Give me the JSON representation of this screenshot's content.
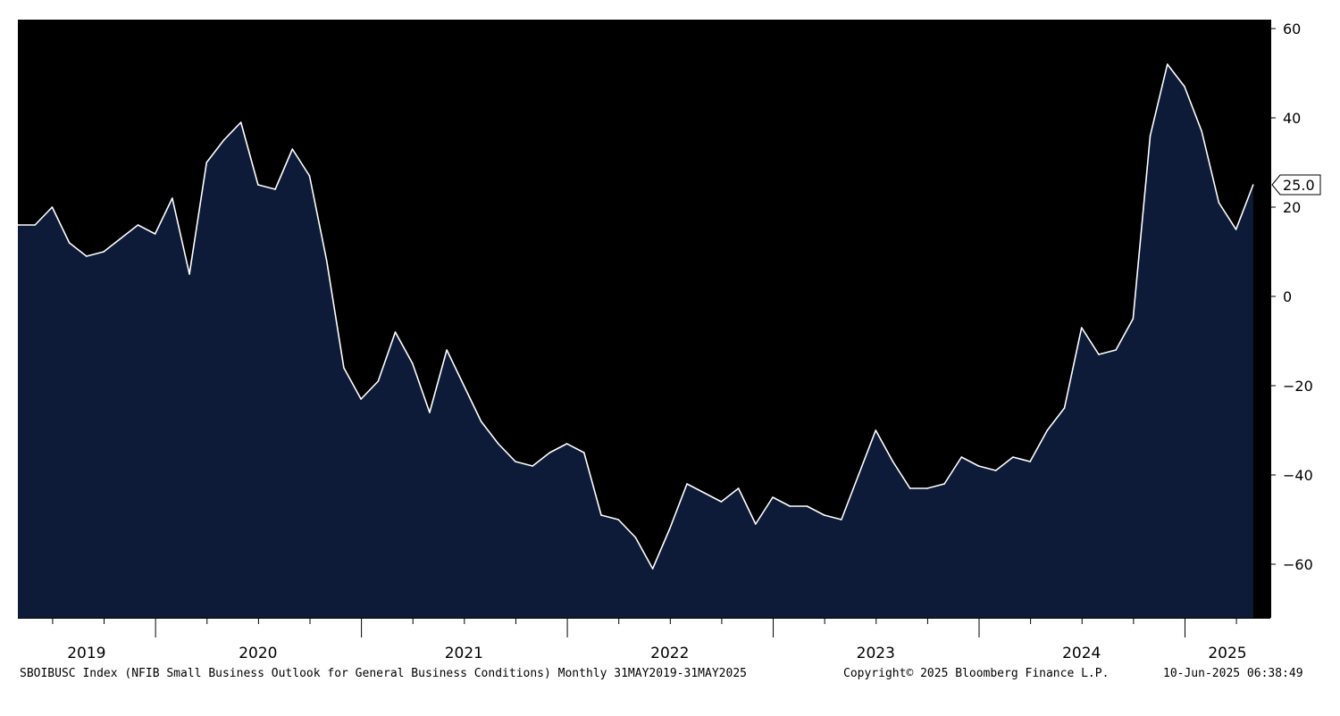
{
  "chart_data": {
    "type": "area",
    "series": [
      {
        "name": "SBOIBUSC Index",
        "x": [
          "2019-05",
          "2019-06",
          "2019-07",
          "2019-08",
          "2019-09",
          "2019-10",
          "2019-11",
          "2019-12",
          "2020-01",
          "2020-02",
          "2020-03",
          "2020-04",
          "2020-05",
          "2020-06",
          "2020-07",
          "2020-08",
          "2020-09",
          "2020-10",
          "2020-11",
          "2020-12",
          "2021-01",
          "2021-02",
          "2021-03",
          "2021-04",
          "2021-05",
          "2021-06",
          "2021-07",
          "2021-08",
          "2021-09",
          "2021-10",
          "2021-11",
          "2021-12",
          "2022-01",
          "2022-02",
          "2022-03",
          "2022-04",
          "2022-05",
          "2022-06",
          "2022-07",
          "2022-08",
          "2022-09",
          "2022-10",
          "2022-11",
          "2022-12",
          "2023-01",
          "2023-02",
          "2023-03",
          "2023-04",
          "2023-05",
          "2023-06",
          "2023-07",
          "2023-08",
          "2023-09",
          "2023-10",
          "2023-11",
          "2023-12",
          "2024-01",
          "2024-02",
          "2024-03",
          "2024-04",
          "2024-05",
          "2024-06",
          "2024-07",
          "2024-08",
          "2024-09",
          "2024-10",
          "2024-11",
          "2024-12",
          "2025-01",
          "2025-02",
          "2025-03",
          "2025-04",
          "2025-05"
        ],
        "values": [
          16,
          16,
          20,
          12,
          9,
          10,
          13,
          16,
          14,
          22,
          5,
          30,
          35,
          39,
          25,
          24,
          33,
          27,
          8,
          -16,
          -23,
          -19,
          -8,
          -15,
          -26,
          -12,
          -20,
          -28,
          -33,
          -37,
          -38,
          -35,
          -33,
          -35,
          -49,
          -50,
          -54,
          -61,
          -52,
          -42,
          -44,
          -46,
          -43,
          -51,
          -45,
          -47,
          -47,
          -49,
          -50,
          -40,
          -30,
          -37,
          -43,
          -43,
          -42,
          -36,
          -38,
          -39,
          -36,
          -37,
          -30,
          -25,
          -7,
          -13,
          -12,
          -5,
          36,
          52,
          47,
          37,
          21,
          15,
          25
        ]
      }
    ],
    "xlim": [
      "2019-05",
      "2025-06"
    ],
    "ylim": [
      -72,
      62
    ],
    "y_ticks": [
      60,
      40,
      20,
      0,
      -20,
      -40,
      -60
    ],
    "year_labels": [
      "2019",
      "2020",
      "2021",
      "2022",
      "2023",
      "2024",
      "2025"
    ],
    "last_value_label": "25.0",
    "grid": false,
    "background": "#000000",
    "fill_color": "#0e1b38",
    "line_color": "#ffffff"
  },
  "footer": {
    "description": "SBOIBUSC Index (NFIB Small Business Outlook for General Business Conditions)  Monthly 31MAY2019-31MAY2025",
    "copyright": "Copyright© 2025 Bloomberg Finance L.P.",
    "timestamp": "10-Jun-2025 06:38:49"
  }
}
